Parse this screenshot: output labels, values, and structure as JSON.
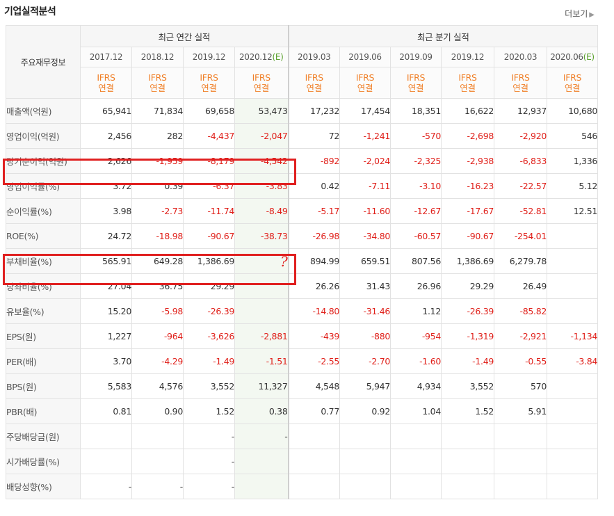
{
  "title": "기업실적분석",
  "more_label": "더보기",
  "row_header": "주요재무정보",
  "groups": {
    "annual": "최근 연간 실적",
    "quarterly": "최근 분기 실적"
  },
  "annual_periods": [
    "2017.12",
    "2018.12",
    "2019.12",
    "2020.12"
  ],
  "annual_est_suffix": "(E)",
  "quarter_periods": [
    "2019.03",
    "2019.06",
    "2019.09",
    "2019.12",
    "2020.03",
    "2020.06"
  ],
  "quarter_est_suffix": "(E)",
  "basis": {
    "line1": "IFRS",
    "line2": "연결"
  },
  "annotation_mark": "?",
  "colors": {
    "negative": "#e0201a",
    "ifrs": "#f07f27",
    "estimate": "#5aa02c",
    "highlight_box": "#e02020"
  },
  "rows": [
    {
      "label": "매출액(억원)",
      "values": [
        "65,941",
        "71,834",
        "69,658",
        "53,473",
        "17,232",
        "17,454",
        "18,351",
        "16,622",
        "12,937",
        "10,680"
      ]
    },
    {
      "label": "영업이익(억원)",
      "values": [
        "2,456",
        "282",
        "-4,437",
        "-2,047",
        "72",
        "-1,241",
        "-570",
        "-2,698",
        "-2,920",
        "546"
      ]
    },
    {
      "label": "당기순이익(억원)",
      "values": [
        "2,626",
        "-1,959",
        "-8,179",
        "-4,542",
        "-892",
        "-2,024",
        "-2,325",
        "-2,938",
        "-6,833",
        "1,336"
      ]
    },
    {
      "label": "영업이익률(%)",
      "values": [
        "3.72",
        "0.39",
        "-6.37",
        "-3.83",
        "0.42",
        "-7.11",
        "-3.10",
        "-16.23",
        "-22.57",
        "5.12"
      ]
    },
    {
      "label": "순이익률(%)",
      "values": [
        "3.98",
        "-2.73",
        "-11.74",
        "-8.49",
        "-5.17",
        "-11.60",
        "-12.67",
        "-17.67",
        "-52.81",
        "12.51"
      ]
    },
    {
      "label": "ROE(%)",
      "values": [
        "24.72",
        "-18.98",
        "-90.67",
        "-38.73",
        "-26.98",
        "-34.80",
        "-60.57",
        "-90.67",
        "-254.01",
        ""
      ]
    },
    {
      "label": "부채비율(%)",
      "values": [
        "565.91",
        "649.28",
        "1,386.69",
        "",
        "894.99",
        "659.51",
        "807.56",
        "1,386.69",
        "6,279.78",
        ""
      ]
    },
    {
      "label": "당좌비율(%)",
      "values": [
        "27.04",
        "36.75",
        "29.29",
        "",
        "26.26",
        "31.43",
        "26.96",
        "29.29",
        "26.49",
        ""
      ]
    },
    {
      "label": "유보율(%)",
      "values": [
        "15.20",
        "-5.98",
        "-26.39",
        "",
        "-14.80",
        "-31.46",
        "1.12",
        "-26.39",
        "-85.82",
        ""
      ]
    },
    {
      "label": "EPS(원)",
      "values": [
        "1,227",
        "-964",
        "-3,626",
        "-2,881",
        "-439",
        "-880",
        "-954",
        "-1,319",
        "-2,921",
        "-1,134"
      ]
    },
    {
      "label": "PER(배)",
      "values": [
        "3.70",
        "-4.29",
        "-1.49",
        "-1.51",
        "-2.55",
        "-2.70",
        "-1.60",
        "-1.49",
        "-0.55",
        "-3.84"
      ]
    },
    {
      "label": "BPS(원)",
      "values": [
        "5,583",
        "4,576",
        "3,552",
        "11,327",
        "4,548",
        "5,947",
        "4,934",
        "3,552",
        "570",
        ""
      ]
    },
    {
      "label": "PBR(배)",
      "values": [
        "0.81",
        "0.90",
        "1.52",
        "0.38",
        "0.77",
        "0.92",
        "1.04",
        "1.52",
        "5.91",
        ""
      ]
    },
    {
      "label": "주당배당금(원)",
      "values": [
        "",
        "",
        "-",
        "-",
        "",
        "",
        "",
        "",
        "",
        ""
      ]
    },
    {
      "label": "시가배당률(%)",
      "values": [
        "",
        "",
        "-",
        "",
        "",
        "",
        "",
        "",
        "",
        ""
      ]
    },
    {
      "label": "배당성향(%)",
      "values": [
        "-",
        "-",
        "-",
        "",
        "",
        "",
        "",
        "",
        "",
        ""
      ]
    }
  ]
}
